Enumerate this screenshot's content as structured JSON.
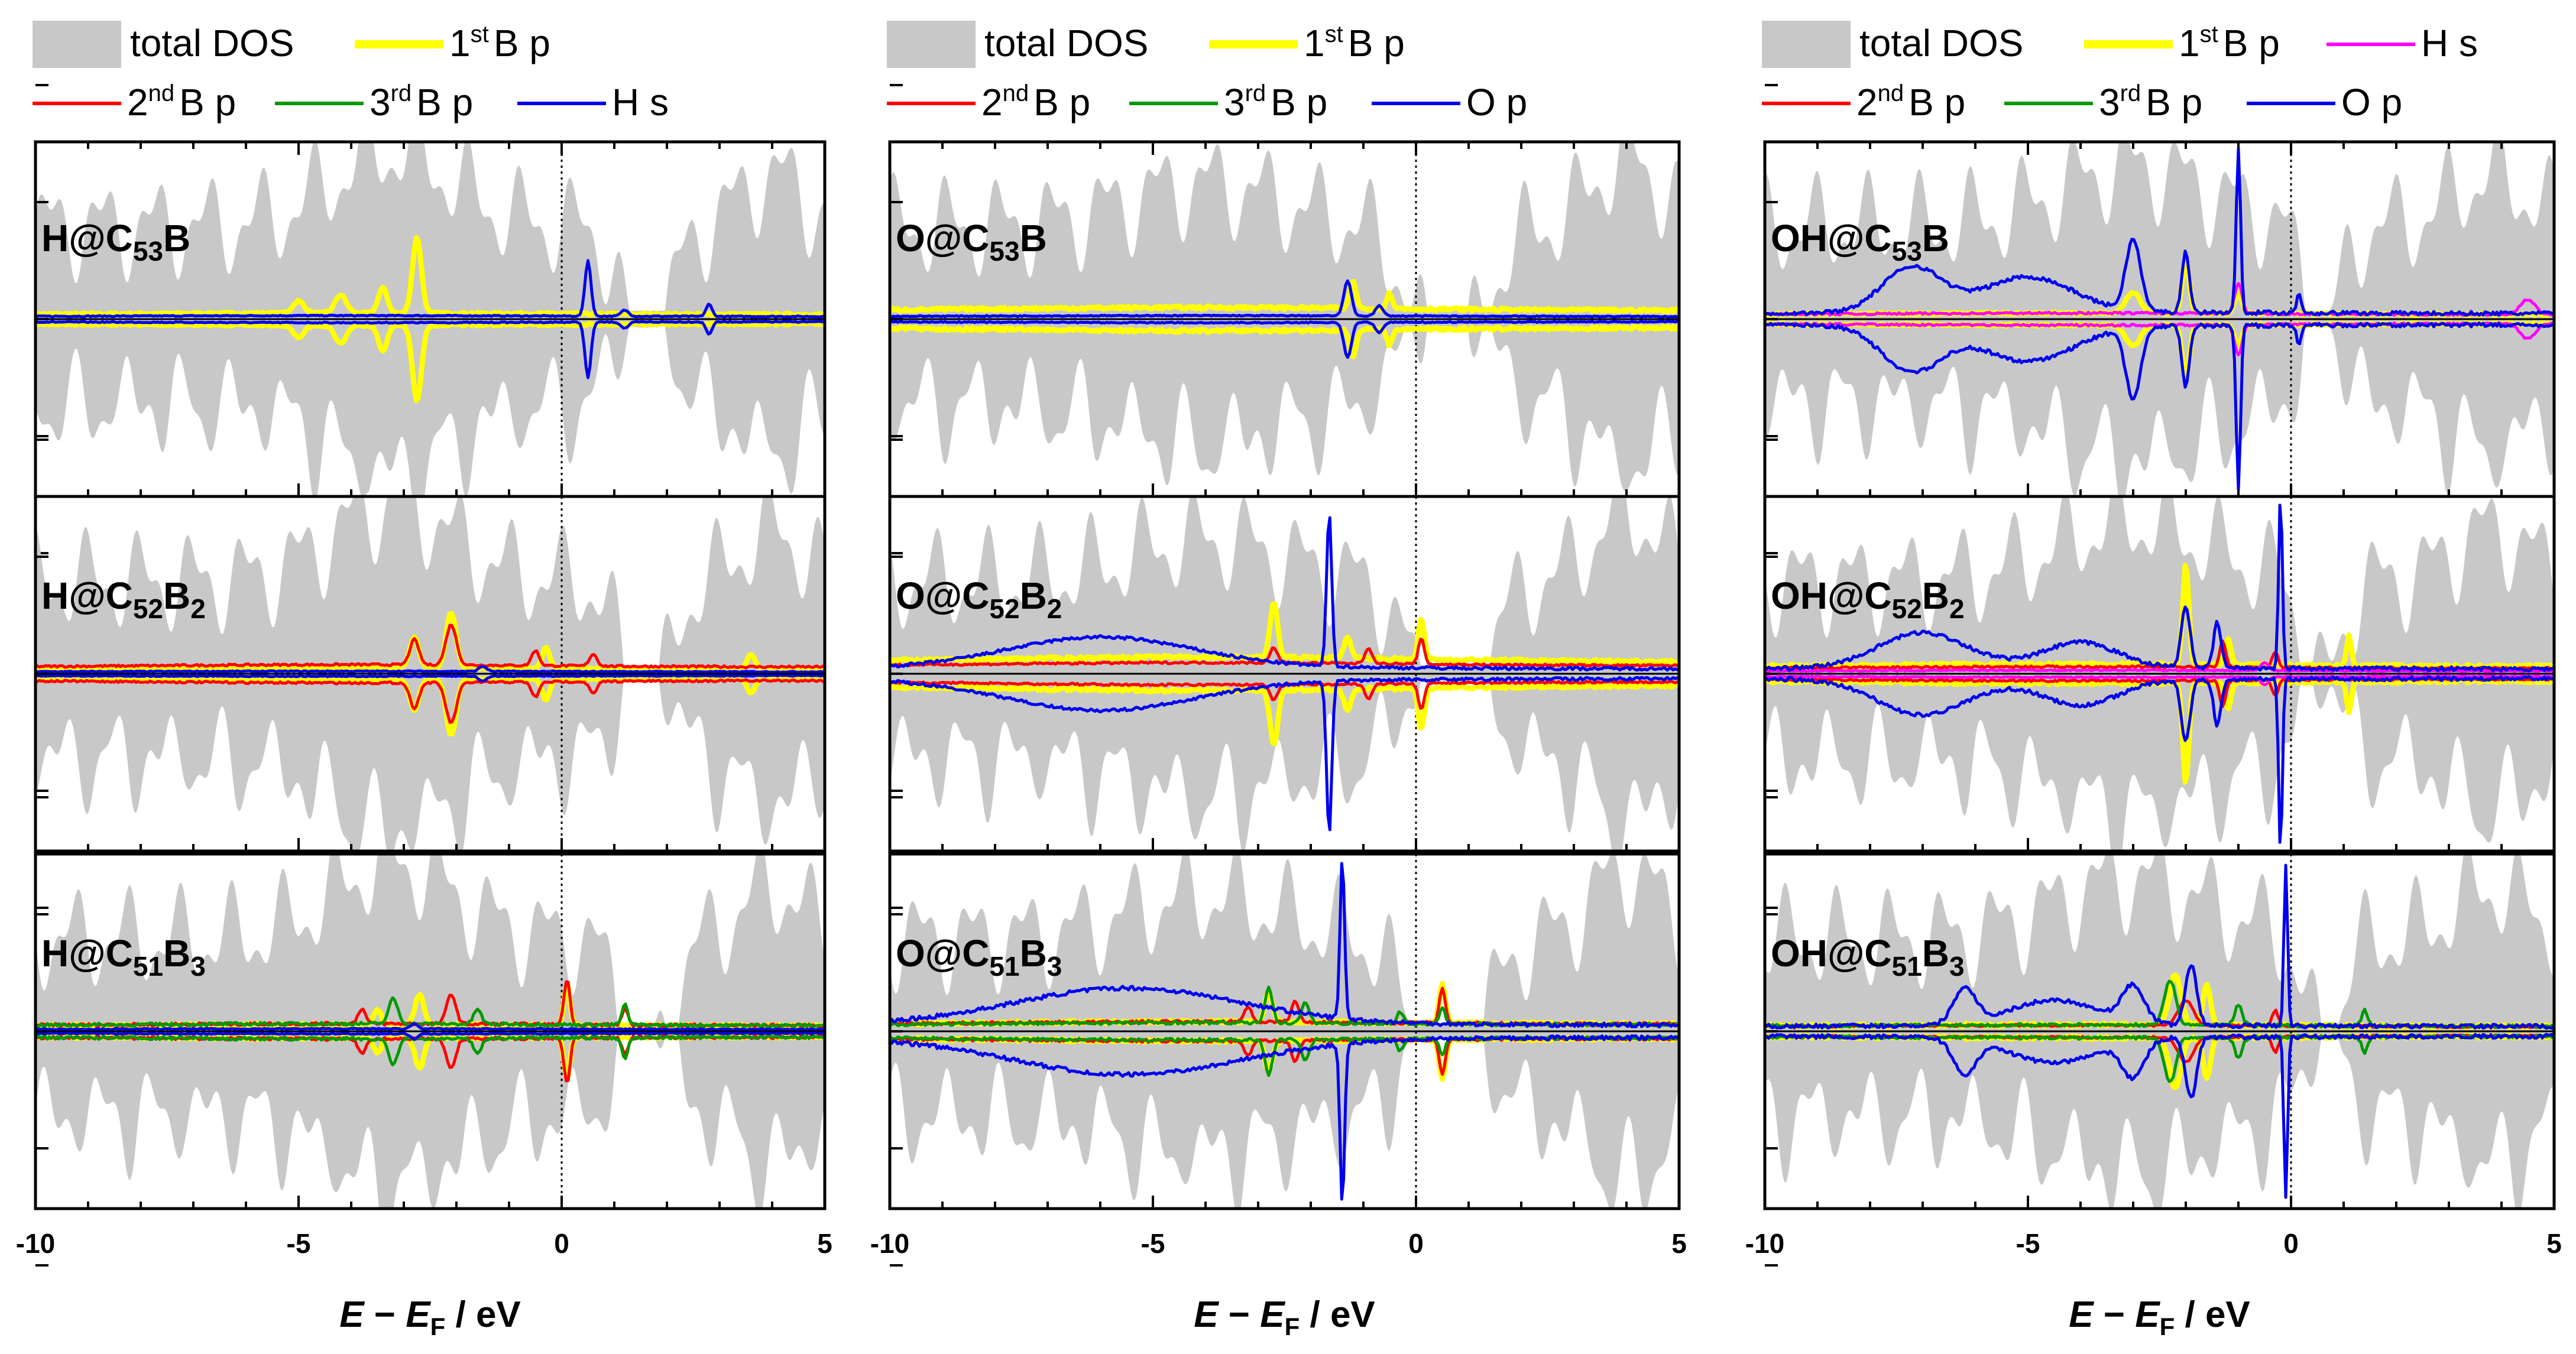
{
  "colors": {
    "dos": "#c8c8c8",
    "B1": "#ffff00",
    "B2": "#ff0000",
    "B3": "#009900",
    "Hs": "#0000ee",
    "Op": "#0000ee",
    "HsPink": "#ff00ff",
    "axis": "#000000"
  },
  "xaxis": {
    "label_italic1": "E",
    "label_minus": " − ",
    "label_italic2": "E",
    "label_sub": "F",
    "label_unit": " / eV",
    "ticks": [
      "-10",
      "-5",
      "0",
      "5"
    ],
    "range": [
      -10,
      5
    ]
  },
  "legends": [
    {
      "rows": [
        [
          {
            "text": "total DOS",
            "key": "dos",
            "kind": "patch"
          },
          {
            "text": "1",
            "sup": "st",
            "rest": "B p",
            "key": "B1",
            "kind": "line"
          }
        ],
        [
          {
            "text": "2",
            "sup": "nd",
            "rest": "B p",
            "key": "B2",
            "kind": "line"
          },
          {
            "text": "3",
            "sup": "rd",
            "rest": "B p",
            "key": "B3",
            "kind": "line"
          },
          {
            "text": "H s",
            "key": "Hs",
            "kind": "line"
          }
        ]
      ]
    },
    {
      "rows": [
        [
          {
            "text": "total DOS",
            "key": "dos",
            "kind": "patch"
          },
          {
            "text": "1",
            "sup": "st",
            "rest": "B p",
            "key": "B1",
            "kind": "line"
          }
        ],
        [
          {
            "text": "2",
            "sup": "nd",
            "rest": "B p",
            "key": "B2",
            "kind": "line"
          },
          {
            "text": "3",
            "sup": "rd",
            "rest": "B p",
            "key": "B3",
            "kind": "line"
          },
          {
            "text": "O p",
            "key": "Op",
            "kind": "line"
          }
        ]
      ]
    },
    {
      "rows": [
        [
          {
            "text": "total DOS",
            "key": "dos",
            "kind": "patch"
          },
          {
            "text": "1",
            "sup": "st",
            "rest": "B p",
            "key": "B1",
            "kind": "line"
          },
          {
            "text": "H s",
            "key": "HsPink",
            "kind": "line"
          }
        ],
        [
          {
            "text": "2",
            "sup": "nd",
            "rest": "B p",
            "key": "B2",
            "kind": "line"
          },
          {
            "text": "3",
            "sup": "rd",
            "rest": "B p",
            "key": "B3",
            "kind": "line"
          },
          {
            "text": "O p",
            "key": "Op",
            "kind": "line"
          }
        ]
      ]
    }
  ],
  "chart_data": [
    {
      "type": "line",
      "column": 0,
      "row": 0,
      "title": {
        "pre": "H@C",
        "s1": "53",
        "mid": "B",
        "s2": ""
      },
      "xlabel": "E − EF / eV",
      "xlim": [
        -10,
        5
      ],
      "series": [
        {
          "name": "1st B p",
          "key": "B1",
          "peaks": [
            [
              -2.75,
              0.75,
              0.12
            ],
            [
              -3.4,
              0.25,
              0.12
            ],
            [
              -4.2,
              0.18,
              0.15
            ],
            [
              -5,
              0.12,
              0.15
            ]
          ],
          "base": 0.05,
          "noise": 0.02
        },
        {
          "name": "H s",
          "key": "Hs",
          "peaks": [
            [
              0.5,
              0.55,
              0.08
            ],
            [
              2.8,
              0.12,
              0.08
            ],
            [
              1.2,
              0.06,
              0.1
            ]
          ],
          "base": 0.03,
          "noise": 0.01
        }
      ]
    },
    {
      "type": "line",
      "column": 0,
      "row": 1,
      "title": {
        "pre": "H@C",
        "s1": "52",
        "mid": "B",
        "s2": "2"
      },
      "xlabel": "E − EF / eV",
      "xlim": [
        -10,
        5
      ],
      "series": [
        {
          "name": "1st B p",
          "key": "B1",
          "peaks": [
            [
              -2.1,
              0.55,
              0.13
            ],
            [
              -2.8,
              0.3,
              0.12
            ],
            [
              -0.3,
              0.2,
              0.1
            ],
            [
              3.6,
              0.15,
              0.1
            ]
          ],
          "base": 0.05,
          "noise": 0.02
        },
        {
          "name": "2nd B p",
          "key": "B2",
          "peaks": [
            [
              -2.1,
              0.4,
              0.14
            ],
            [
              -2.8,
              0.25,
              0.12
            ],
            [
              -0.5,
              0.15,
              0.1
            ],
            [
              0.6,
              0.12,
              0.1
            ]
          ],
          "base": 0.08,
          "noise": 0.02
        },
        {
          "name": "H s",
          "key": "Hs",
          "peaks": [
            [
              -1.5,
              0.05,
              0.1
            ]
          ],
          "base": 0.02,
          "noise": 0.01
        }
      ]
    },
    {
      "type": "line",
      "column": 0,
      "row": 2,
      "title": {
        "pre": "H@C",
        "s1": "51",
        "mid": "B",
        "s2": "3"
      },
      "xlabel": "E − EF / eV",
      "xlim": [
        -10,
        5
      ],
      "series": [
        {
          "name": "1st B p",
          "key": "B1",
          "peaks": [
            [
              -2.7,
              0.3,
              0.12
            ],
            [
              0.1,
              0.4,
              0.08
            ],
            [
              -3.5,
              0.15,
              0.1
            ]
          ],
          "base": 0.05,
          "noise": 0.03
        },
        {
          "name": "2nd B p",
          "key": "B2",
          "peaks": [
            [
              0.1,
              0.45,
              0.08
            ],
            [
              -2.1,
              0.3,
              0.12
            ],
            [
              -3.8,
              0.15,
              0.1
            ],
            [
              1.2,
              0.15,
              0.08
            ]
          ],
          "base": 0.06,
          "noise": 0.03
        },
        {
          "name": "3rd B p",
          "key": "B3",
          "peaks": [
            [
              -3.2,
              0.25,
              0.12
            ],
            [
              -1.6,
              0.15,
              0.1
            ],
            [
              1.2,
              0.2,
              0.08
            ]
          ],
          "base": 0.06,
          "noise": 0.03
        },
        {
          "name": "H s",
          "key": "Hs",
          "peaks": [
            [
              -2.8,
              0.05,
              0.1
            ]
          ],
          "base": 0.02,
          "noise": 0.01
        }
      ]
    },
    {
      "type": "line",
      "column": 1,
      "row": 0,
      "title": {
        "pre": "O@C",
        "s1": "53",
        "mid": "B",
        "s2": ""
      },
      "xlabel": "E − EF / eV",
      "xlim": [
        -10,
        5
      ],
      "series": [
        {
          "name": "1st B p",
          "key": "B1",
          "peaks": [
            [
              -1.2,
              0.28,
              0.08
            ],
            [
              -0.5,
              0.15,
              0.08
            ]
          ],
          "base": 0.1,
          "noise": 0.03
        },
        {
          "name": "O p",
          "key": "Op",
          "peaks": [
            [
              -1.3,
              0.35,
              0.1
            ],
            [
              -0.7,
              0.1,
              0.1
            ]
          ],
          "base": 0.03,
          "noise": 0.01
        }
      ]
    },
    {
      "type": "line",
      "column": 1,
      "row": 1,
      "title": {
        "pre": "O@C",
        "s1": "52",
        "mid": "B",
        "s2": "2"
      },
      "xlabel": "E − EF / eV",
      "xlim": [
        -10,
        5
      ],
      "series": [
        {
          "name": "1st B p",
          "key": "B1",
          "peaks": [
            [
              -2.7,
              0.55,
              0.1
            ],
            [
              0.1,
              0.4,
              0.08
            ],
            [
              -1.3,
              0.2,
              0.1
            ]
          ],
          "base": 0.15,
          "noise": 0.03
        },
        {
          "name": "2nd B p",
          "key": "B2",
          "peaks": [
            [
              -0.9,
              0.15,
              0.1
            ],
            [
              0.1,
              0.25,
              0.08
            ],
            [
              -2.7,
              0.15,
              0.1
            ]
          ],
          "base": 0.1,
          "noise": 0.02
        },
        {
          "name": "O p",
          "key": "Op",
          "peaks": [
            [
              -1.65,
              1.5,
              0.07
            ],
            [
              -6,
              0.3,
              2.5
            ]
          ],
          "base": 0.05,
          "noise": 0.03
        }
      ]
    },
    {
      "type": "line",
      "column": 1,
      "row": 2,
      "title": {
        "pre": "O@C",
        "s1": "51",
        "mid": "B",
        "s2": "3"
      },
      "xlabel": "E − EF / eV",
      "xlim": [
        -10,
        5
      ],
      "series": [
        {
          "name": "1st B p",
          "key": "B1",
          "peaks": [
            [
              -2.8,
              0.3,
              0.1
            ],
            [
              0.5,
              0.4,
              0.08
            ]
          ],
          "base": 0.08,
          "noise": 0.03
        },
        {
          "name": "2nd B p",
          "key": "B2",
          "peaks": [
            [
              -2.3,
              0.2,
              0.1
            ],
            [
              0.5,
              0.35,
              0.08
            ],
            [
              -3.2,
              0.15,
              0.1
            ]
          ],
          "base": 0.08,
          "noise": 0.03
        },
        {
          "name": "3rd B p",
          "key": "B3",
          "peaks": [
            [
              -2.8,
              0.35,
              0.1
            ],
            [
              -2.1,
              0.2,
              0.1
            ],
            [
              -0.3,
              0.12,
              0.08
            ],
            [
              0.5,
              0.15,
              0.08
            ]
          ],
          "base": 0.07,
          "noise": 0.03
        },
        {
          "name": "O p",
          "key": "Op",
          "peaks": [
            [
              -1.4,
              1.6,
              0.06
            ],
            [
              -5.5,
              0.35,
              3
            ]
          ],
          "base": 0.06,
          "noise": 0.04
        }
      ]
    },
    {
      "type": "line",
      "column": 2,
      "row": 0,
      "title": {
        "pre": "OH@C",
        "s1": "53",
        "mid": "B",
        "s2": ""
      },
      "xlabel": "E − EF / eV",
      "xlim": [
        -10,
        5
      ],
      "series": [
        {
          "name": "1st B p",
          "key": "B1",
          "peaks": [
            [
              -2.0,
              0.5,
              0.1
            ],
            [
              -3.0,
              0.2,
              0.2
            ],
            [
              -1.0,
              0.2,
              0.1
            ]
          ],
          "base": 0.05,
          "noise": 0.02
        },
        {
          "name": "H s",
          "key": "HsPink",
          "peaks": [
            [
              -1.0,
              0.3,
              0.1
            ],
            [
              4.5,
              0.15,
              0.2
            ]
          ],
          "base": 0.05,
          "noise": 0.02
        },
        {
          "name": "O p",
          "key": "Op",
          "peaks": [
            [
              -1.0,
              1.6,
              0.06
            ],
            [
              -3.0,
              0.7,
              0.2
            ],
            [
              -2.0,
              0.6,
              0.1
            ],
            [
              -7.2,
              0.45,
              0.8
            ],
            [
              -5,
              0.35,
              1.2
            ],
            [
              0.15,
              0.2,
              0.06
            ]
          ],
          "base": 0.05,
          "noise": 0.04
        }
      ]
    },
    {
      "type": "line",
      "column": 2,
      "row": 1,
      "title": {
        "pre": "OH@C",
        "s1": "52",
        "mid": "B",
        "s2": "2"
      },
      "xlabel": "E − EF / eV",
      "xlim": [
        -10,
        5
      ],
      "series": [
        {
          "name": "1st B p",
          "key": "B1",
          "peaks": [
            [
              -2.0,
              1.0,
              0.08
            ],
            [
              1.1,
              0.3,
              0.06
            ],
            [
              -1.2,
              0.25,
              0.08
            ]
          ],
          "base": 0.08,
          "noise": 0.03
        },
        {
          "name": "2nd B p",
          "key": "B2",
          "peaks": [
            [
              -1.3,
              0.25,
              0.08
            ],
            [
              -0.3,
              0.15,
              0.08
            ]
          ],
          "base": 0.06,
          "noise": 0.02
        },
        {
          "name": "H s",
          "key": "HsPink",
          "peaks": [
            [
              -0.5,
              0.08,
              0.1
            ]
          ],
          "base": 0.03,
          "noise": 0.01
        },
        {
          "name": "O p",
          "key": "Op",
          "peaks": [
            [
              -0.2,
              1.7,
              0.05
            ],
            [
              -2.0,
              0.6,
              0.12
            ],
            [
              -1.4,
              0.45,
              0.1
            ],
            [
              -7,
              0.35,
              1.2
            ],
            [
              -4,
              0.25,
              1
            ]
          ],
          "base": 0.04,
          "noise": 0.04
        }
      ]
    },
    {
      "type": "line",
      "column": 2,
      "row": 2,
      "title": {
        "pre": "OH@C",
        "s1": "51",
        "mid": "B",
        "s2": "3"
      },
      "xlabel": "E − EF / eV",
      "xlim": [
        -10,
        5
      ],
      "series": [
        {
          "name": "1st B p",
          "key": "B1",
          "peaks": [
            [
              -2.2,
              0.5,
              0.15
            ],
            [
              -1.6,
              0.4,
              0.1
            ]
          ],
          "base": 0.05,
          "noise": 0.03
        },
        {
          "name": "2nd B p",
          "key": "B2",
          "peaks": [
            [
              -2.0,
              0.25,
              0.2
            ],
            [
              -0.3,
              0.15,
              0.08
            ]
          ],
          "base": 0.05,
          "noise": 0.02
        },
        {
          "name": "3rd B p",
          "key": "B3",
          "peaks": [
            [
              -2.3,
              0.45,
              0.15
            ],
            [
              1.4,
              0.15,
              0.08
            ],
            [
              -1.0,
              0.2,
              0.1
            ]
          ],
          "base": 0.05,
          "noise": 0.03
        },
        {
          "name": "O p",
          "key": "Op",
          "peaks": [
            [
              -0.1,
              1.6,
              0.05
            ],
            [
              -1.9,
              0.6,
              0.15
            ],
            [
              -3.0,
              0.35,
              0.3
            ],
            [
              -6.2,
              0.35,
              0.3
            ],
            [
              -4.5,
              0.25,
              1.2
            ]
          ],
          "base": 0.04,
          "noise": 0.04
        }
      ]
    }
  ]
}
